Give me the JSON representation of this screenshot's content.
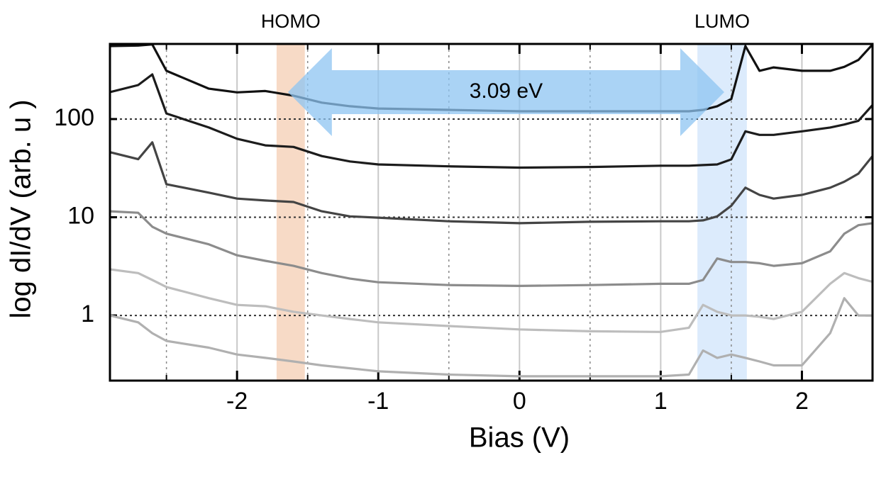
{
  "chart_data": {
    "type": "line",
    "x_label": "Bias (V)",
    "y_label": "log dI/dV (arb. u )",
    "log_y": true,
    "grid": true,
    "xlim": [
      -2.9,
      2.5
    ],
    "ylim": [
      0.217,
      582
    ],
    "xticks": [
      -2,
      -1,
      0,
      1,
      2
    ],
    "x_minor_ticks": [
      -2.5,
      -1.5,
      -0.5,
      0.5,
      1.5
    ],
    "yticks": [
      1,
      10,
      100
    ],
    "x": [
      -2.9,
      -2.7,
      -2.6,
      -2.5,
      -2.2,
      -2.0,
      -1.8,
      -1.6,
      -1.4,
      -1.2,
      -1.0,
      -0.5,
      0,
      0.5,
      1.0,
      1.2,
      1.3,
      1.4,
      1.5,
      1.6,
      1.7,
      1.8,
      2.0,
      2.2,
      2.3,
      2.4,
      2.5
    ],
    "series": [
      {
        "color": "#111111",
        "values": [
          554,
          560,
          575,
          310,
          204,
          187,
          193,
          173,
          147,
          135,
          128,
          124,
          120,
          120,
          120,
          120,
          124,
          135,
          160,
          554,
          310,
          336,
          310,
          310,
          340,
          400,
          575
        ]
      },
      {
        "color": "#1c1c1c",
        "values": [
          188,
          222,
          285,
          114,
          82,
          63,
          54,
          52,
          42,
          37,
          34.5,
          33,
          32,
          32.5,
          33.5,
          33.5,
          34,
          34.5,
          38.8,
          75,
          69,
          69,
          75,
          82,
          88,
          96,
          139
        ]
      },
      {
        "color": "#444444",
        "values": [
          46,
          39,
          58,
          21.7,
          17.8,
          15.5,
          14.8,
          14.3,
          11.5,
          10.2,
          9.9,
          9.1,
          8.7,
          9,
          9.1,
          9.1,
          9.3,
          10.2,
          13.1,
          20,
          16.9,
          15.5,
          16.9,
          20,
          23,
          27.8,
          42
        ]
      },
      {
        "color": "#8c8c8c",
        "values": [
          11.5,
          11.1,
          8,
          6.8,
          5.3,
          4.1,
          3.6,
          3.2,
          2.7,
          2.37,
          2.18,
          2.04,
          2,
          2.04,
          2.1,
          2.1,
          2.3,
          3.8,
          3.5,
          3.5,
          3.4,
          3.2,
          3.4,
          4.5,
          6.8,
          8.3,
          8.7
        ]
      },
      {
        "color": "#bdbdbd",
        "values": [
          2.95,
          2.7,
          2.3,
          1.95,
          1.5,
          1.28,
          1.24,
          1.09,
          1,
          0.92,
          0.85,
          0.78,
          0.72,
          0.69,
          0.68,
          0.75,
          1.28,
          1.09,
          1,
          1,
          0.97,
          0.92,
          1.09,
          2.1,
          2.7,
          2.4,
          2.2
        ]
      },
      {
        "color": "#b0b0b0",
        "values": [
          1,
          0.85,
          0.66,
          0.55,
          0.47,
          0.4,
          0.37,
          0.34,
          0.31,
          0.29,
          0.27,
          0.25,
          0.24,
          0.24,
          0.24,
          0.25,
          0.44,
          0.37,
          0.4,
          0.37,
          0.34,
          0.31,
          0.31,
          0.66,
          1.5,
          1,
          1
        ]
      }
    ],
    "annotations": [
      {
        "text": "HOMO",
        "x": [
          -1.72,
          -1.52
        ],
        "color": "#f6d3bc"
      },
      {
        "text": "LUMO",
        "x": [
          1.26,
          1.61
        ],
        "color": "#d6e7fb"
      }
    ],
    "arrow": {
      "text": "3.09 eV",
      "x": [
        -1.64,
        1.45
      ],
      "color": "#8ec4f2"
    }
  }
}
